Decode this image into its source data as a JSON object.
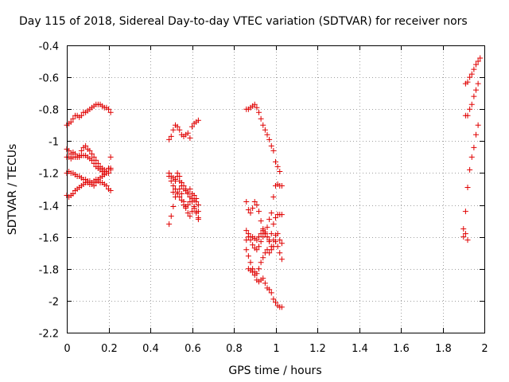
{
  "chart_data": {
    "type": "scatter",
    "title": "Day 115 of 2018, Sidereal Day-to-day VTEC variation (SDTVAR) for receiver nors",
    "xlabel": "GPS time / hours",
    "ylabel": "SDTVAR / TECUs",
    "xlim": [
      0,
      2
    ],
    "ylim": [
      -2.2,
      -0.4
    ],
    "xticks": [
      "0",
      "0.2",
      "0.4",
      "0.6",
      "0.8",
      "1",
      "1.2",
      "1.4",
      "1.6",
      "1.8",
      "2"
    ],
    "yticks": [
      "-0.4",
      "-0.6",
      "-0.8",
      "-1",
      "-1.2",
      "-1.4",
      "-1.6",
      "-1.8",
      "-2",
      "-2.2"
    ],
    "grid": true,
    "marker": "+",
    "color": "#e00000",
    "series": [
      {
        "name": "SDTVAR",
        "points": [
          [
            0.0,
            -0.9
          ],
          [
            0.01,
            -0.89
          ],
          [
            0.02,
            -0.88
          ],
          [
            0.03,
            -0.86
          ],
          [
            0.04,
            -0.84
          ],
          [
            0.05,
            -0.84
          ],
          [
            0.06,
            -0.85
          ],
          [
            0.07,
            -0.84
          ],
          [
            0.08,
            -0.82
          ],
          [
            0.09,
            -0.82
          ],
          [
            0.1,
            -0.81
          ],
          [
            0.11,
            -0.8
          ],
          [
            0.12,
            -0.79
          ],
          [
            0.13,
            -0.78
          ],
          [
            0.14,
            -0.77
          ],
          [
            0.15,
            -0.77
          ],
          [
            0.16,
            -0.77
          ],
          [
            0.17,
            -0.78
          ],
          [
            0.18,
            -0.79
          ],
          [
            0.19,
            -0.79
          ],
          [
            0.2,
            -0.8
          ],
          [
            0.21,
            -0.82
          ],
          [
            0.0,
            -1.05
          ],
          [
            0.01,
            -1.06
          ],
          [
            0.02,
            -1.08
          ],
          [
            0.03,
            -1.07
          ],
          [
            0.04,
            -1.08
          ],
          [
            0.05,
            -1.1
          ],
          [
            0.06,
            -1.09
          ],
          [
            0.07,
            -1.06
          ],
          [
            0.08,
            -1.04
          ],
          [
            0.09,
            -1.03
          ],
          [
            0.1,
            -1.05
          ],
          [
            0.11,
            -1.06
          ],
          [
            0.12,
            -1.08
          ],
          [
            0.13,
            -1.1
          ],
          [
            0.14,
            -1.12
          ],
          [
            0.15,
            -1.14
          ],
          [
            0.16,
            -1.16
          ],
          [
            0.17,
            -1.17
          ],
          [
            0.18,
            -1.18
          ],
          [
            0.19,
            -1.19
          ],
          [
            0.2,
            -1.17
          ],
          [
            0.21,
            -1.1
          ],
          [
            0.0,
            -1.1
          ],
          [
            0.01,
            -1.1
          ],
          [
            0.02,
            -1.11
          ],
          [
            0.03,
            -1.1
          ],
          [
            0.04,
            -1.1
          ],
          [
            0.05,
            -1.1
          ],
          [
            0.06,
            -1.1
          ],
          [
            0.07,
            -1.09
          ],
          [
            0.08,
            -1.09
          ],
          [
            0.09,
            -1.09
          ],
          [
            0.1,
            -1.1
          ],
          [
            0.11,
            -1.11
          ],
          [
            0.12,
            -1.12
          ],
          [
            0.13,
            -1.14
          ],
          [
            0.14,
            -1.16
          ],
          [
            0.15,
            -1.17
          ],
          [
            0.16,
            -1.18
          ],
          [
            0.17,
            -1.19
          ],
          [
            0.18,
            -1.2
          ],
          [
            0.19,
            -1.2
          ],
          [
            0.2,
            -1.2
          ],
          [
            0.21,
            -1.18
          ],
          [
            0.0,
            -1.2
          ],
          [
            0.01,
            -1.19
          ],
          [
            0.02,
            -1.2
          ],
          [
            0.03,
            -1.2
          ],
          [
            0.04,
            -1.21
          ],
          [
            0.05,
            -1.22
          ],
          [
            0.06,
            -1.22
          ],
          [
            0.07,
            -1.23
          ],
          [
            0.08,
            -1.24
          ],
          [
            0.09,
            -1.24
          ],
          [
            0.1,
            -1.25
          ],
          [
            0.11,
            -1.25
          ],
          [
            0.12,
            -1.26
          ],
          [
            0.13,
            -1.25
          ],
          [
            0.14,
            -1.24
          ],
          [
            0.15,
            -1.24
          ],
          [
            0.16,
            -1.23
          ],
          [
            0.17,
            -1.22
          ],
          [
            0.18,
            -1.21
          ],
          [
            0.19,
            -1.2
          ],
          [
            0.2,
            -1.2
          ],
          [
            0.21,
            -1.17
          ],
          [
            0.0,
            -1.34
          ],
          [
            0.01,
            -1.35
          ],
          [
            0.02,
            -1.34
          ],
          [
            0.03,
            -1.33
          ],
          [
            0.04,
            -1.31
          ],
          [
            0.05,
            -1.3
          ],
          [
            0.06,
            -1.29
          ],
          [
            0.07,
            -1.28
          ],
          [
            0.08,
            -1.27
          ],
          [
            0.09,
            -1.26
          ],
          [
            0.1,
            -1.26
          ],
          [
            0.11,
            -1.27
          ],
          [
            0.12,
            -1.27
          ],
          [
            0.13,
            -1.28
          ],
          [
            0.14,
            -1.26
          ],
          [
            0.15,
            -1.25
          ],
          [
            0.16,
            -1.26
          ],
          [
            0.17,
            -1.26
          ],
          [
            0.18,
            -1.27
          ],
          [
            0.19,
            -1.28
          ],
          [
            0.2,
            -1.3
          ],
          [
            0.21,
            -1.31
          ],
          [
            0.49,
            -0.99
          ],
          [
            0.5,
            -0.97
          ],
          [
            0.51,
            -0.93
          ],
          [
            0.52,
            -0.9
          ],
          [
            0.53,
            -0.91
          ],
          [
            0.54,
            -0.93
          ],
          [
            0.55,
            -0.96
          ],
          [
            0.56,
            -0.97
          ],
          [
            0.57,
            -0.96
          ],
          [
            0.58,
            -0.95
          ],
          [
            0.59,
            -0.98
          ],
          [
            0.6,
            -0.91
          ],
          [
            0.61,
            -0.89
          ],
          [
            0.62,
            -0.88
          ],
          [
            0.63,
            -0.87
          ],
          [
            0.49,
            -1.2
          ],
          [
            0.5,
            -1.22
          ],
          [
            0.51,
            -1.23
          ],
          [
            0.52,
            -1.24
          ],
          [
            0.53,
            -1.22
          ],
          [
            0.54,
            -1.25
          ],
          [
            0.55,
            -1.28
          ],
          [
            0.56,
            -1.3
          ],
          [
            0.57,
            -1.31
          ],
          [
            0.58,
            -1.33
          ],
          [
            0.59,
            -1.35
          ],
          [
            0.6,
            -1.38
          ],
          [
            0.61,
            -1.41
          ],
          [
            0.62,
            -1.45
          ],
          [
            0.63,
            -1.49
          ],
          [
            0.49,
            -1.22
          ],
          [
            0.5,
            -1.25
          ],
          [
            0.51,
            -1.28
          ],
          [
            0.52,
            -1.3
          ],
          [
            0.53,
            -1.33
          ],
          [
            0.54,
            -1.35
          ],
          [
            0.55,
            -1.37
          ],
          [
            0.56,
            -1.4
          ],
          [
            0.57,
            -1.41
          ],
          [
            0.58,
            -1.4
          ],
          [
            0.59,
            -1.38
          ],
          [
            0.6,
            -1.36
          ],
          [
            0.61,
            -1.34
          ],
          [
            0.62,
            -1.36
          ],
          [
            0.63,
            -1.4
          ],
          [
            0.49,
            -1.52
          ],
          [
            0.5,
            -1.47
          ],
          [
            0.51,
            -1.41
          ],
          [
            0.52,
            -1.35
          ],
          [
            0.53,
            -1.32
          ],
          [
            0.54,
            -1.3
          ],
          [
            0.55,
            -1.33
          ],
          [
            0.56,
            -1.38
          ],
          [
            0.57,
            -1.42
          ],
          [
            0.58,
            -1.45
          ],
          [
            0.59,
            -1.47
          ],
          [
            0.6,
            -1.44
          ],
          [
            0.61,
            -1.42
          ],
          [
            0.62,
            -1.44
          ],
          [
            0.63,
            -1.48
          ],
          [
            0.51,
            -1.32
          ],
          [
            0.52,
            -1.25
          ],
          [
            0.53,
            -1.2
          ],
          [
            0.54,
            -1.22
          ],
          [
            0.55,
            -1.26
          ],
          [
            0.56,
            -1.28
          ],
          [
            0.57,
            -1.3
          ],
          [
            0.58,
            -1.32
          ],
          [
            0.59,
            -1.3
          ],
          [
            0.6,
            -1.33
          ],
          [
            0.61,
            -1.37
          ],
          [
            0.62,
            -1.38
          ],
          [
            0.63,
            -1.44
          ],
          [
            0.86,
            -0.8
          ],
          [
            0.87,
            -0.8
          ],
          [
            0.88,
            -0.79
          ],
          [
            0.89,
            -0.78
          ],
          [
            0.9,
            -0.77
          ],
          [
            0.91,
            -0.79
          ],
          [
            0.92,
            -0.82
          ],
          [
            0.93,
            -0.86
          ],
          [
            0.94,
            -0.9
          ],
          [
            0.95,
            -0.93
          ],
          [
            0.96,
            -0.96
          ],
          [
            0.97,
            -0.99
          ],
          [
            0.98,
            -1.03
          ],
          [
            0.99,
            -1.06
          ],
          [
            1.0,
            -1.13
          ],
          [
            1.01,
            -1.16
          ],
          [
            1.02,
            -1.19
          ],
          [
            0.86,
            -1.38
          ],
          [
            0.87,
            -1.43
          ],
          [
            0.88,
            -1.45
          ],
          [
            0.89,
            -1.42
          ],
          [
            0.9,
            -1.38
          ],
          [
            0.91,
            -1.4
          ],
          [
            0.92,
            -1.44
          ],
          [
            0.93,
            -1.5
          ],
          [
            0.94,
            -1.55
          ],
          [
            0.95,
            -1.58
          ],
          [
            0.96,
            -1.54
          ],
          [
            0.97,
            -1.49
          ],
          [
            0.98,
            -1.45
          ],
          [
            0.99,
            -1.35
          ],
          [
            1.0,
            -1.28
          ],
          [
            1.01,
            -1.27
          ],
          [
            1.02,
            -1.28
          ],
          [
            1.03,
            -1.28
          ],
          [
            0.86,
            -1.56
          ],
          [
            0.87,
            -1.58
          ],
          [
            0.88,
            -1.6
          ],
          [
            0.89,
            -1.6
          ],
          [
            0.9,
            -1.61
          ],
          [
            0.91,
            -1.62
          ],
          [
            0.92,
            -1.6
          ],
          [
            0.93,
            -1.58
          ],
          [
            0.94,
            -1.56
          ],
          [
            0.95,
            -1.57
          ],
          [
            0.96,
            -1.6
          ],
          [
            0.97,
            -1.63
          ],
          [
            0.98,
            -1.66
          ],
          [
            0.99,
            -1.62
          ],
          [
            1.0,
            -1.59
          ],
          [
            1.01,
            -1.58
          ],
          [
            1.02,
            -1.62
          ],
          [
            1.03,
            -1.64
          ],
          [
            0.86,
            -1.62
          ],
          [
            0.87,
            -1.6
          ],
          [
            0.88,
            -1.62
          ],
          [
            0.89,
            -1.65
          ],
          [
            0.9,
            -1.67
          ],
          [
            0.91,
            -1.68
          ],
          [
            0.92,
            -1.66
          ],
          [
            0.93,
            -1.63
          ],
          [
            0.94,
            -1.6
          ],
          [
            0.95,
            -1.58
          ],
          [
            0.96,
            -1.6
          ],
          [
            0.97,
            -1.62
          ],
          [
            0.98,
            -1.58
          ],
          [
            0.99,
            -1.52
          ],
          [
            1.0,
            -1.48
          ],
          [
            1.01,
            -1.46
          ],
          [
            1.02,
            -1.46
          ],
          [
            1.03,
            -1.46
          ],
          [
            0.86,
            -1.68
          ],
          [
            0.87,
            -1.72
          ],
          [
            0.88,
            -1.76
          ],
          [
            0.89,
            -1.8
          ],
          [
            0.9,
            -1.82
          ],
          [
            0.91,
            -1.83
          ],
          [
            0.92,
            -1.8
          ],
          [
            0.93,
            -1.76
          ],
          [
            0.94,
            -1.73
          ],
          [
            0.95,
            -1.7
          ],
          [
            0.96,
            -1.68
          ],
          [
            0.97,
            -1.7
          ],
          [
            0.98,
            -1.68
          ],
          [
            0.99,
            -1.66
          ],
          [
            1.0,
            -1.63
          ],
          [
            1.01,
            -1.66
          ],
          [
            1.02,
            -1.7
          ],
          [
            1.03,
            -1.74
          ],
          [
            0.87,
            -1.8
          ],
          [
            0.88,
            -1.81
          ],
          [
            0.89,
            -1.82
          ],
          [
            0.9,
            -1.84
          ],
          [
            0.91,
            -1.87
          ],
          [
            0.92,
            -1.88
          ],
          [
            0.93,
            -1.87
          ],
          [
            0.94,
            -1.86
          ],
          [
            0.95,
            -1.89
          ],
          [
            0.96,
            -1.92
          ],
          [
            0.97,
            -1.93
          ],
          [
            0.98,
            -1.95
          ],
          [
            0.99,
            -1.99
          ],
          [
            1.0,
            -2.01
          ],
          [
            1.01,
            -2.03
          ],
          [
            1.02,
            -2.04
          ],
          [
            1.03,
            -2.04
          ],
          [
            1.91,
            -0.64
          ],
          [
            1.92,
            -0.63
          ],
          [
            1.93,
            -0.6
          ],
          [
            1.94,
            -0.58
          ],
          [
            1.95,
            -0.55
          ],
          [
            1.96,
            -0.52
          ],
          [
            1.97,
            -0.5
          ],
          [
            1.98,
            -0.48
          ],
          [
            1.91,
            -0.84
          ],
          [
            1.92,
            -0.84
          ],
          [
            1.93,
            -0.8
          ],
          [
            1.94,
            -0.77
          ],
          [
            1.95,
            -0.72
          ],
          [
            1.96,
            -0.68
          ],
          [
            1.97,
            -0.64
          ],
          [
            1.9,
            -1.55
          ],
          [
            1.91,
            -1.44
          ],
          [
            1.92,
            -1.29
          ],
          [
            1.93,
            -1.18
          ],
          [
            1.94,
            -1.1
          ],
          [
            1.95,
            -1.04
          ],
          [
            1.96,
            -0.96
          ],
          [
            1.97,
            -0.9
          ],
          [
            1.9,
            -1.6
          ],
          [
            1.91,
            -1.58
          ],
          [
            1.92,
            -1.62
          ]
        ]
      }
    ]
  }
}
